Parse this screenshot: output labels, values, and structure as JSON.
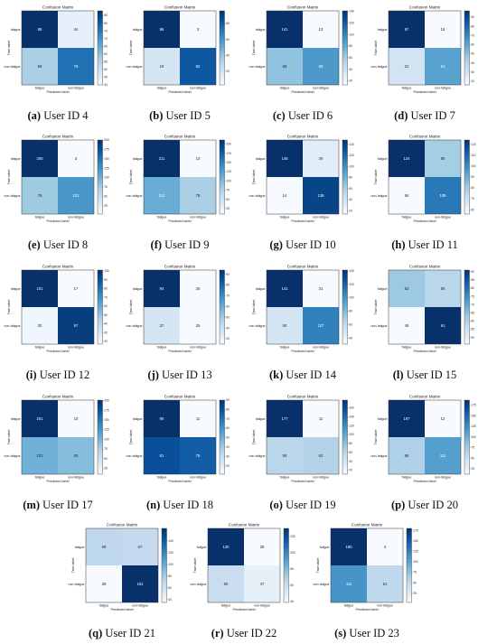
{
  "figure": {
    "panels": [
      {
        "tag": "(a)",
        "caption": "User ID 4"
      },
      {
        "tag": "(b)",
        "caption": "User ID 5"
      },
      {
        "tag": "(c)",
        "caption": "User ID 6"
      },
      {
        "tag": "(d)",
        "caption": "User ID 7"
      },
      {
        "tag": "(e)",
        "caption": "User ID 8"
      },
      {
        "tag": "(f)",
        "caption": "User ID 9"
      },
      {
        "tag": "(g)",
        "caption": "User ID 10"
      },
      {
        "tag": "(h)",
        "caption": "User ID 11"
      },
      {
        "tag": "(i)",
        "caption": "User ID 12"
      },
      {
        "tag": "(j)",
        "caption": "User ID 13"
      },
      {
        "tag": "(k)",
        "caption": "User ID 14"
      },
      {
        "tag": "(l)",
        "caption": "User ID 15"
      },
      {
        "tag": "(m)",
        "caption": "User ID 17"
      },
      {
        "tag": "(n)",
        "caption": "User ID 18"
      },
      {
        "tag": "(o)",
        "caption": "User ID 19"
      },
      {
        "tag": "(p)",
        "caption": "User ID 20"
      },
      {
        "tag": "(q)",
        "caption": "User ID 21"
      },
      {
        "tag": "(r)",
        "caption": "User ID 22"
      },
      {
        "tag": "(s)",
        "caption": "User ID 23"
      }
    ]
  },
  "chart_data": [
    {
      "type": "heatmap",
      "title": "Confusion Matrix",
      "xlabel": "Predicted label",
      "ylabel": "True label",
      "x_categories": [
        "fatigue",
        "non-fatigue"
      ],
      "y_categories": [
        "fatigue",
        "non-fatigue"
      ],
      "values": [
        [
          88,
          44
        ],
        [
          56,
          76
        ]
      ],
      "colorbar": {
        "min": 40,
        "max": 88,
        "ticks": [
          40,
          45,
          50,
          55,
          60,
          65,
          70,
          75,
          80,
          85
        ]
      },
      "colormap": "Blues"
    },
    {
      "type": "heatmap",
      "title": "Confusion Matrix",
      "xlabel": "Predicted label",
      "ylabel": "True label",
      "x_categories": [
        "fatigue",
        "non-fatigue"
      ],
      "y_categories": [
        "fatigue",
        "non-fatigue"
      ],
      "values": [
        [
          96,
          3
        ],
        [
          19,
          82
        ]
      ],
      "colorbar": {
        "min": 3,
        "max": 96,
        "ticks": [
          20,
          40,
          60,
          80
        ]
      },
      "colormap": "Blues"
    },
    {
      "type": "heatmap",
      "title": "Confusion Matrix",
      "xlabel": "Predicted label",
      "ylabel": "True label",
      "x_categories": [
        "fatigue",
        "non-fatigue"
      ],
      "y_categories": [
        "fatigue",
        "non-fatigue"
      ],
      "values": [
        [
          141,
          13
        ],
        [
          65,
          89
        ]
      ],
      "colorbar": {
        "min": 13,
        "max": 141,
        "ticks": [
          20,
          40,
          60,
          80,
          100,
          120,
          140
        ]
      },
      "colormap": "Blues"
    },
    {
      "type": "heatmap",
      "title": "Confusion Matrix",
      "xlabel": "Predicted label",
      "ylabel": "True label",
      "x_categories": [
        "fatigue",
        "non-fatigue"
      ],
      "y_categories": [
        "fatigue",
        "non-fatigue"
      ],
      "values": [
        [
          97,
          16
        ],
        [
          31,
          61
        ]
      ],
      "colorbar": {
        "min": 16,
        "max": 97,
        "ticks": [
          20,
          30,
          40,
          50,
          60,
          70,
          80,
          90
        ]
      },
      "colormap": "Blues"
    },
    {
      "type": "heatmap",
      "title": "Confusion Matrix",
      "xlabel": "Predicted label",
      "ylabel": "True label",
      "x_categories": [
        "fatigue",
        "non-fatigue"
      ],
      "y_categories": [
        "fatigue",
        "non-fatigue"
      ],
      "values": [
        [
          200,
          3
        ],
        [
          76,
          122
        ]
      ],
      "colorbar": {
        "min": 3,
        "max": 200,
        "ticks": [
          25,
          50,
          75,
          100,
          125,
          150,
          175,
          200
        ]
      },
      "colormap": "Blues"
    },
    {
      "type": "heatmap",
      "title": "Confusion Matrix",
      "xlabel": "Predicted label",
      "ylabel": "True label",
      "x_categories": [
        "fatigue",
        "non-fatigue"
      ],
      "y_categories": [
        "fatigue",
        "non-fatigue"
      ],
      "values": [
        [
          211,
          10
        ],
        [
          112,
          78
        ]
      ],
      "colorbar": {
        "min": 10,
        "max": 211,
        "ticks": [
          25,
          50,
          75,
          100,
          125,
          150,
          175,
          200
        ]
      },
      "colormap": "Blues"
    },
    {
      "type": "heatmap",
      "title": "Confusion Matrix",
      "xlabel": "Predicted label",
      "ylabel": "True label",
      "x_categories": [
        "fatigue",
        "non-fatigue"
      ],
      "y_categories": [
        "fatigue",
        "non-fatigue"
      ],
      "values": [
        [
          148,
          29
        ],
        [
          14,
          138
        ]
      ],
      "colorbar": {
        "min": 14,
        "max": 148,
        "ticks": [
          20,
          40,
          60,
          80,
          100,
          120,
          140
        ]
      },
      "colormap": "Blues"
    },
    {
      "type": "heatmap",
      "title": "Confusion Matrix",
      "xlabel": "Predicted label",
      "ylabel": "True label",
      "x_categories": [
        "fatigue",
        "non-fatigue"
      ],
      "y_categories": [
        "fatigue",
        "non-fatigue"
      ],
      "values": [
        [
          124,
          80
        ],
        [
          56,
          105
        ]
      ],
      "colorbar": {
        "min": 56,
        "max": 124,
        "ticks": [
          60,
          70,
          80,
          90,
          100,
          110,
          120
        ]
      },
      "colormap": "Blues"
    },
    {
      "type": "heatmap",
      "title": "Confusion Matrix",
      "xlabel": "Predicted label",
      "ylabel": "True label",
      "x_categories": [
        "fatigue",
        "non-fatigue"
      ],
      "y_categories": [
        "fatigue",
        "non-fatigue"
      ],
      "values": [
        [
          101,
          17
        ],
        [
          20,
          97
        ]
      ],
      "colorbar": {
        "min": 17,
        "max": 101,
        "ticks": [
          20,
          30,
          40,
          50,
          60,
          70,
          80,
          90,
          100
        ]
      },
      "colormap": "Blues"
    },
    {
      "type": "heatmap",
      "title": "Confusion Matrix",
      "xlabel": "Predicted label",
      "ylabel": "True label",
      "x_categories": [
        "fatigue",
        "non-fatigue"
      ],
      "y_categories": [
        "fatigue",
        "non-fatigue"
      ],
      "values": [
        [
          94,
          25
        ],
        [
          37,
          25
        ]
      ],
      "colorbar": {
        "min": 25,
        "max": 94,
        "ticks": [
          30,
          40,
          50,
          60,
          70,
          80,
          90
        ]
      },
      "colormap": "Blues"
    },
    {
      "type": "heatmap",
      "title": "Confusion Matrix",
      "xlabel": "Predicted label",
      "ylabel": "True label",
      "x_categories": [
        "fatigue",
        "non-fatigue"
      ],
      "y_categories": [
        "fatigue",
        "non-fatigue"
      ],
      "values": [
        [
          141,
          31
        ],
        [
          50,
          107
        ]
      ],
      "colorbar": {
        "min": 31,
        "max": 141,
        "ticks": [
          40,
          60,
          80,
          100,
          120,
          140
        ]
      },
      "colormap": "Blues"
    },
    {
      "type": "heatmap",
      "title": "Confusion Matrix",
      "xlabel": "Predicted label",
      "ylabel": "True label",
      "x_categories": [
        "fatigue",
        "non-fatigue"
      ],
      "y_categories": [
        "fatigue",
        "non-fatigue"
      ],
      "values": [
        [
          63,
          59
        ],
        [
          46,
          91
        ]
      ],
      "colorbar": {
        "min": 46,
        "max": 91,
        "ticks": [
          50,
          55,
          60,
          65,
          70,
          75,
          80,
          85,
          90
        ]
      },
      "colormap": "Blues"
    },
    {
      "type": "heatmap",
      "title": "Confusion Matrix",
      "xlabel": "Predicted label",
      "ylabel": "True label",
      "x_categories": [
        "fatigue",
        "non-fatigue"
      ],
      "y_categories": [
        "fatigue",
        "non-fatigue"
      ],
      "values": [
        [
          201,
          10
        ],
        [
          103,
          93
        ]
      ],
      "colorbar": {
        "min": 10,
        "max": 201,
        "ticks": [
          25,
          50,
          75,
          100,
          125,
          150,
          175,
          200
        ]
      },
      "colormap": "Blues"
    },
    {
      "type": "heatmap",
      "title": "Confusion Matrix",
      "xlabel": "Predicted label",
      "ylabel": "True label",
      "x_categories": [
        "fatigue",
        "non-fatigue"
      ],
      "y_categories": [
        "fatigue",
        "non-fatigue"
      ],
      "values": [
        [
          90,
          11
        ],
        [
          81,
          76
        ]
      ],
      "colorbar": {
        "min": 11,
        "max": 90,
        "ticks": [
          20,
          30,
          40,
          50,
          60,
          70,
          80,
          90
        ]
      },
      "colormap": "Blues"
    },
    {
      "type": "heatmap",
      "title": "Confusion Matrix",
      "xlabel": "Predicted label",
      "ylabel": "True label",
      "x_categories": [
        "fatigue",
        "non-fatigue"
      ],
      "y_categories": [
        "fatigue",
        "non-fatigue"
      ],
      "values": [
        [
          177,
          11
        ],
        [
          59,
          62
        ]
      ],
      "colorbar": {
        "min": 11,
        "max": 177,
        "ticks": [
          20,
          40,
          60,
          80,
          100,
          120,
          140,
          160
        ]
      },
      "colormap": "Blues"
    },
    {
      "type": "heatmap",
      "title": "Confusion Matrix",
      "xlabel": "Predicted label",
      "ylabel": "True label",
      "x_categories": [
        "fatigue",
        "non-fatigue"
      ],
      "y_categories": [
        "fatigue",
        "non-fatigue"
      ],
      "values": [
        [
          187,
          12
        ],
        [
          69,
          111
        ]
      ],
      "colorbar": {
        "min": 12,
        "max": 187,
        "ticks": [
          25,
          50,
          75,
          100,
          125,
          150,
          175
        ]
      },
      "colormap": "Blues"
    },
    {
      "type": "heatmap",
      "title": "Confusion Matrix",
      "xlabel": "Predicted label",
      "ylabel": "True label",
      "x_categories": [
        "fatigue",
        "non-fatigue"
      ],
      "y_categories": [
        "fatigue",
        "non-fatigue"
      ],
      "values": [
        [
          69,
          67
        ],
        [
          35,
          161
        ]
      ],
      "colorbar": {
        "min": 35,
        "max": 161,
        "ticks": [
          40,
          60,
          80,
          100,
          120,
          140
        ]
      },
      "colormap": "Blues"
    },
    {
      "type": "heatmap",
      "title": "Confusion Matrix",
      "xlabel": "Predicted label",
      "ylabel": "True label",
      "x_categories": [
        "fatigue",
        "non-fatigue"
      ],
      "y_categories": [
        "fatigue",
        "non-fatigue"
      ],
      "values": [
        [
          130,
          39
        ],
        [
          60,
          47
        ]
      ],
      "colorbar": {
        "min": 39,
        "max": 130,
        "ticks": [
          40,
          60,
          80,
          100,
          120
        ]
      },
      "colormap": "Blues"
    },
    {
      "type": "heatmap",
      "title": "Confusion Matrix",
      "xlabel": "Predicted label",
      "ylabel": "True label",
      "x_categories": [
        "fatigue",
        "non-fatigue"
      ],
      "y_categories": [
        "fatigue",
        "non-fatigue"
      ],
      "values": [
        [
          180,
          3
        ],
        [
          111,
          51
        ]
      ],
      "colorbar": {
        "min": 3,
        "max": 180,
        "ticks": [
          25,
          50,
          75,
          100,
          125,
          150,
          175
        ]
      },
      "colormap": "Blues"
    }
  ]
}
